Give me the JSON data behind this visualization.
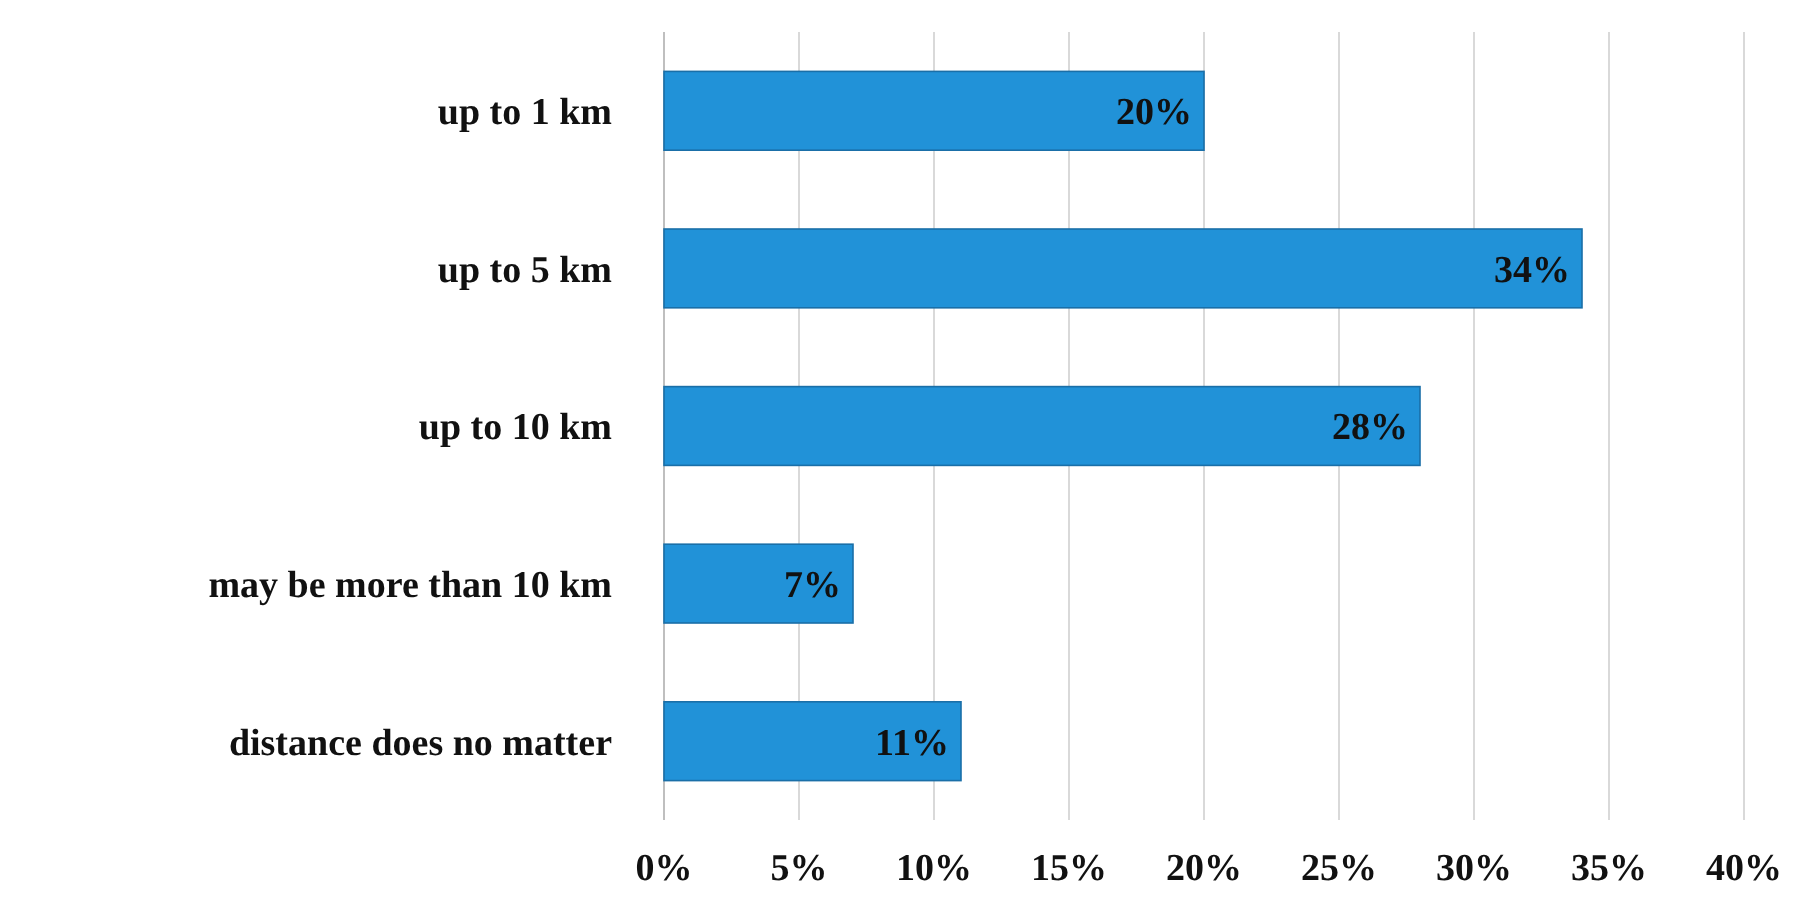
{
  "chart_data": {
    "type": "bar",
    "orientation": "horizontal",
    "categories": [
      "up to 1 km",
      "up to 5 km",
      "up to 10 km",
      "may be more than 10 km",
      "distance does no matter"
    ],
    "values": [
      20,
      34,
      28,
      7,
      11
    ],
    "value_labels": [
      "20%",
      "34%",
      "28%",
      "7%",
      "11%"
    ],
    "color": "#2192d8",
    "xlim": [
      0,
      40
    ],
    "xticks": [
      {
        "value": 0,
        "label": "0%"
      },
      {
        "value": 5,
        "label": "5%"
      },
      {
        "value": 10,
        "label": "10%"
      },
      {
        "value": 15,
        "label": "15%"
      },
      {
        "value": 20,
        "label": "20%"
      },
      {
        "value": 25,
        "label": "25%"
      },
      {
        "value": 30,
        "label": "30%"
      },
      {
        "value": 35,
        "label": "35%"
      },
      {
        "value": 40,
        "label": "40%"
      }
    ],
    "grid": "x"
  }
}
